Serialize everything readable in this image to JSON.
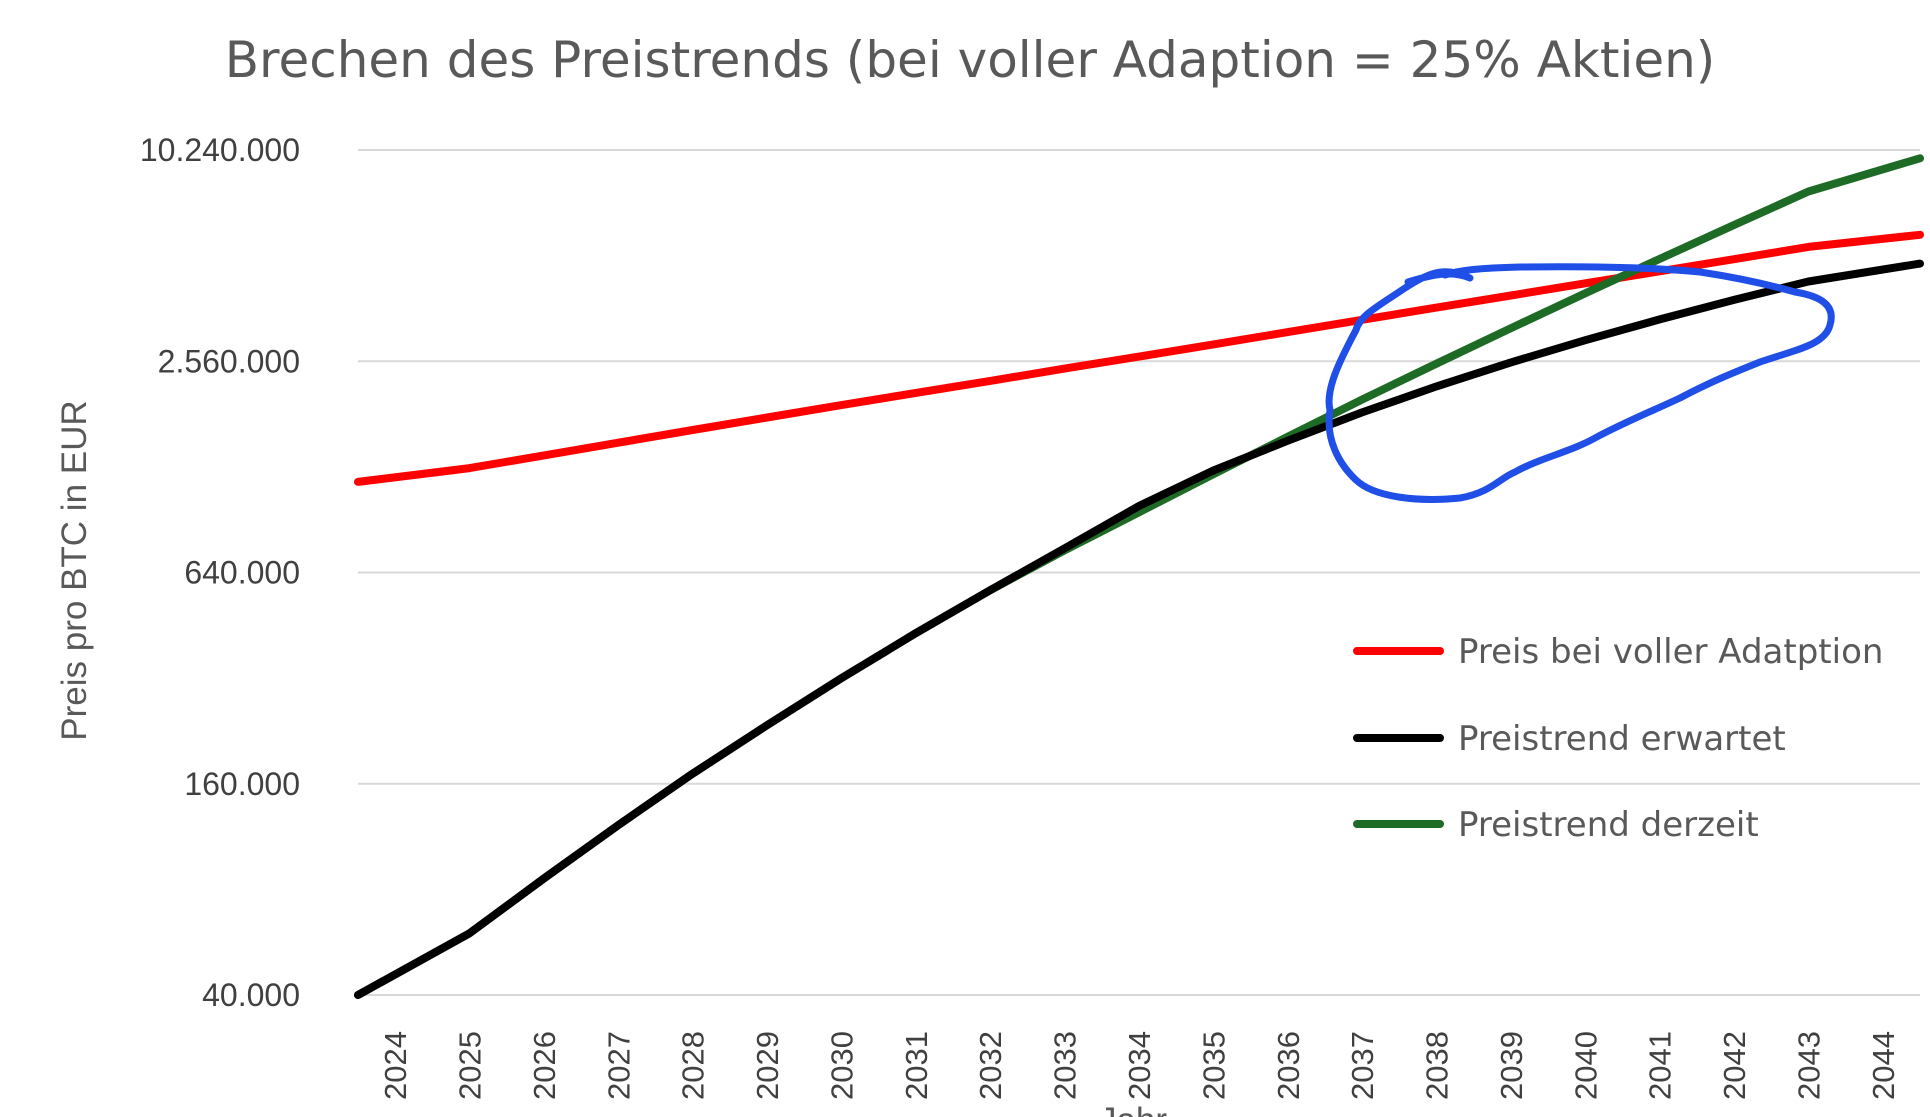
{
  "chart_data": {
    "type": "line",
    "title": "Brechen des Preistrends (bei voller Adaption = 25% Aktien)",
    "xlabel": "Jahr",
    "ylabel": "Preis pro BTC in EUR",
    "y_scale": "log",
    "y_base": 4,
    "ylim": [
      40000,
      10240000
    ],
    "y_ticks": [
      "40.000",
      "160.000",
      "640.000",
      "2.560.000",
      "10.240.000"
    ],
    "y_tick_values": [
      40000,
      160000,
      640000,
      2560000,
      10240000
    ],
    "x": [
      "2024",
      "2025",
      "2026",
      "2027",
      "2028",
      "2029",
      "2030",
      "2031",
      "2032",
      "2033",
      "2034",
      "2035",
      "2036",
      "2037",
      "2038",
      "2039",
      "2040",
      "2041",
      "2042",
      "2043",
      "2044"
    ],
    "grid": "horizontal",
    "legend_position": "right",
    "series": [
      {
        "name": "Preis bei voller Adatption",
        "color": "#ff0000",
        "values": [
          1160000,
          1270000,
          1380000,
          1500000,
          1630000,
          1770000,
          1920000,
          2080000,
          2250000,
          2440000,
          2640000,
          2860000,
          3100000,
          3360000,
          3640000,
          3940000,
          4270000,
          4620000,
          5000000,
          5420000,
          5870000
        ]
      },
      {
        "name": "Preistrend erwartet",
        "color": "#000000",
        "values": [
          40000,
          60000,
          86000,
          122000,
          171000,
          235000,
          320000,
          430000,
          570000,
          750000,
          990000,
          1250000,
          1520000,
          1830000,
          2170000,
          2540000,
          2940000,
          3370000,
          3830000,
          4320000,
          4860000
        ]
      },
      {
        "name": "Preistrend derzeit",
        "color": "#1e6b26",
        "values": [
          40000,
          60000,
          86000,
          122000,
          171000,
          235000,
          320000,
          430000,
          570000,
          740000,
          950000,
          1220000,
          1560000,
          1990000,
          2520000,
          3180000,
          4000000,
          5010000,
          6260000,
          7800000,
          9700000
        ]
      }
    ],
    "annotation": {
      "type": "hand-drawn-loop",
      "color": "#1f4fe6"
    }
  }
}
